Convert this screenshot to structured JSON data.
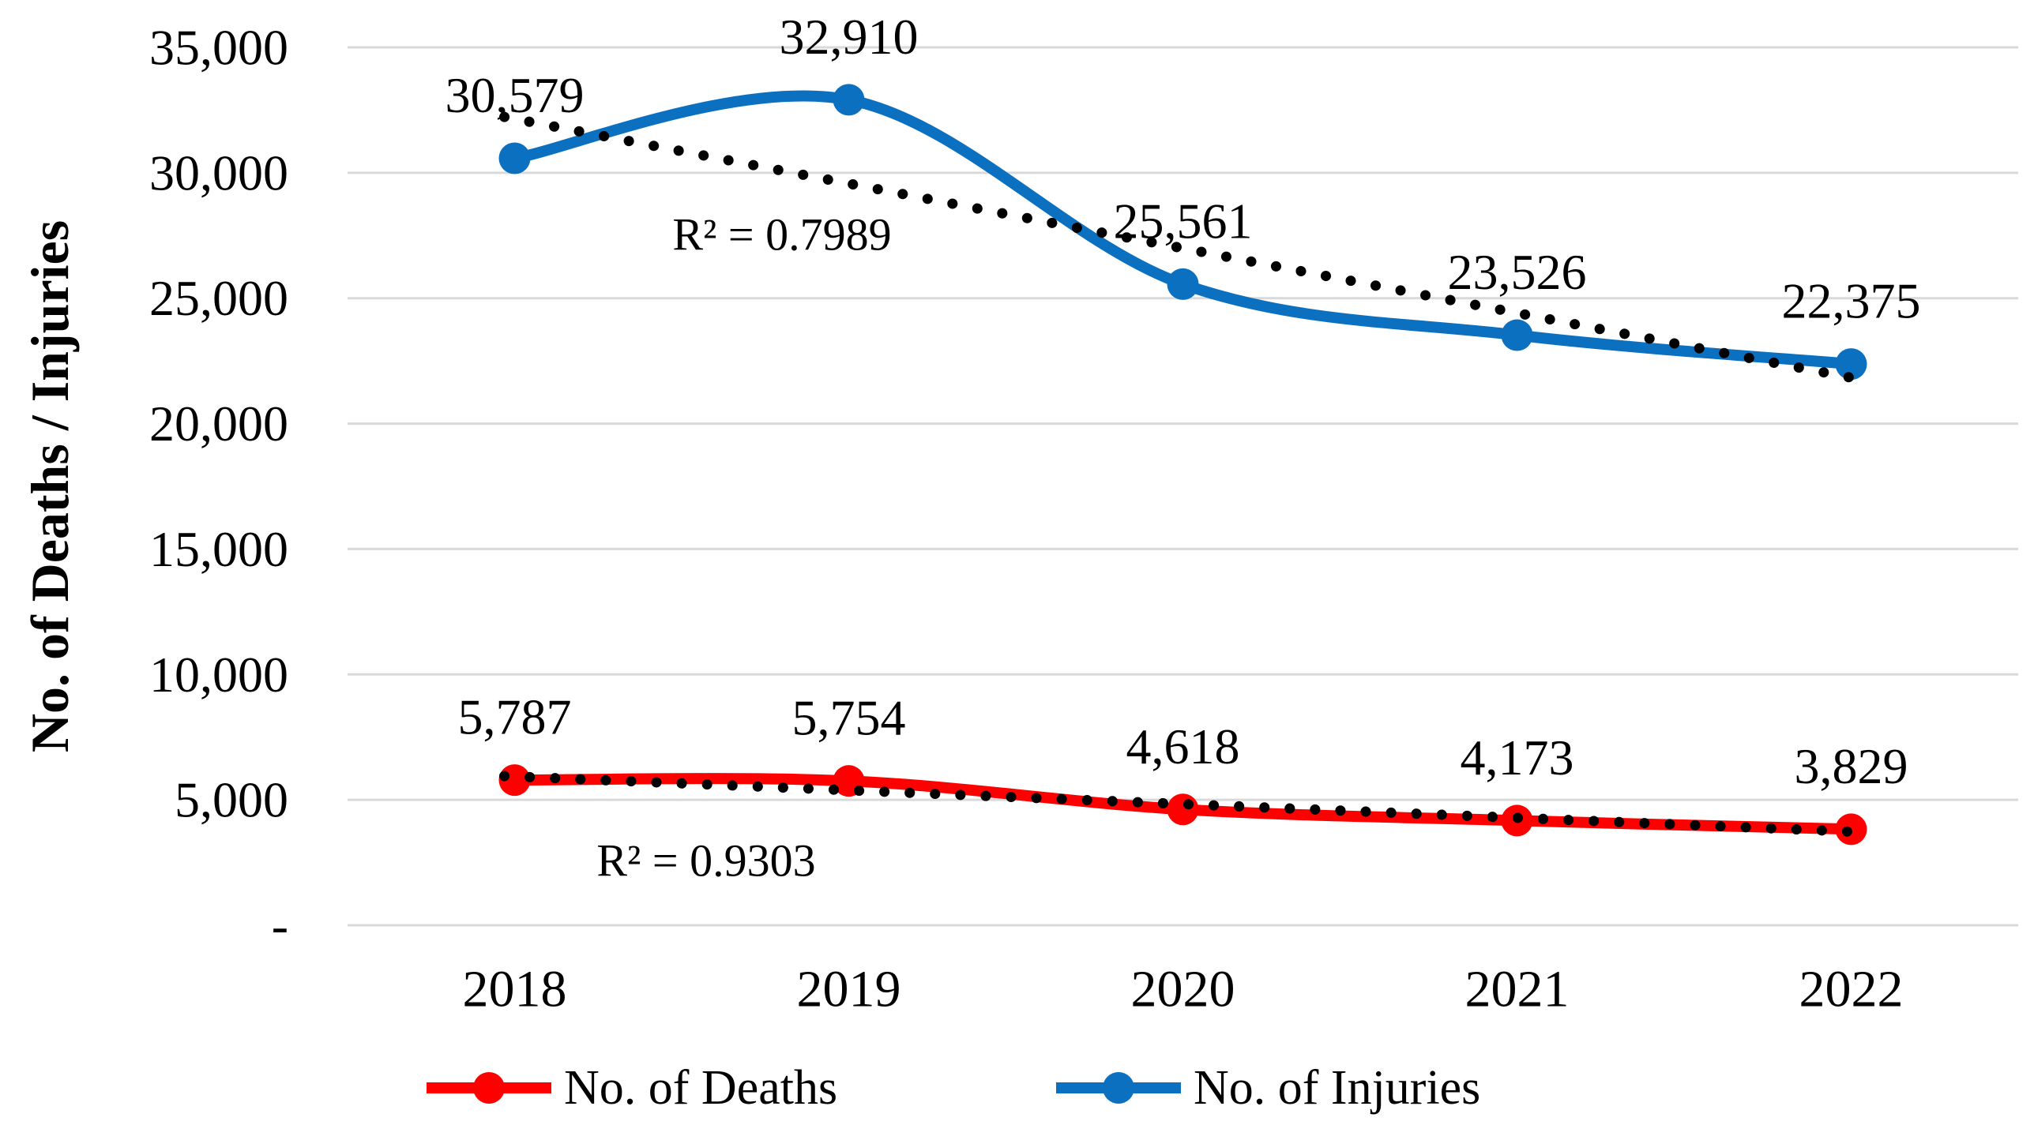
{
  "figure": {
    "background": "#FFFFFF",
    "y_axis_title": "No. of Deaths / Injuries",
    "grid_color": "#D9D9D9",
    "text_color": "#000000",
    "y_ticks": [
      {
        "value": 35000,
        "label": "35,000"
      },
      {
        "value": 30000,
        "label": "30,000"
      },
      {
        "value": 25000,
        "label": "25,000"
      },
      {
        "value": 20000,
        "label": "20,000"
      },
      {
        "value": 15000,
        "label": "15,000"
      },
      {
        "value": 10000,
        "label": "10,000"
      },
      {
        "value": 5000,
        "label": "5,000"
      },
      {
        "value": 0,
        "label": "-"
      }
    ]
  },
  "chart_data": {
    "type": "line",
    "title": "",
    "xlabel": "",
    "ylabel": "No. of Deaths / Injuries",
    "ylim": [
      0,
      35000
    ],
    "grid": true,
    "legend_position": "bottom",
    "categories": [
      "2018",
      "2019",
      "2020",
      "2021",
      "2022"
    ],
    "series": [
      {
        "name": "No. of Deaths",
        "color": "#FF0000",
        "values": [
          5787,
          5754,
          4618,
          4173,
          3829
        ],
        "labels": [
          "5,787",
          "5,754",
          "4,618",
          "4,173",
          "3,829"
        ],
        "smooth": true,
        "trendline": {
          "type": "linear",
          "color": "#000000",
          "r_squared_label": "R² = 0.9303"
        }
      },
      {
        "name": "No. of Injuries",
        "color": "#0C70C0",
        "values": [
          30579,
          32910,
          25561,
          23526,
          22375
        ],
        "labels": [
          "30,579",
          "32,910",
          "25,561",
          "23,526",
          "22,375"
        ],
        "smooth": true,
        "trendline": {
          "type": "linear",
          "color": "#000000",
          "r_squared_label": "R² = 0.7989"
        }
      }
    ]
  },
  "legend": {
    "items": [
      {
        "label": "No. of Deaths",
        "color": "#FF0000"
      },
      {
        "label": "No. of Injuries",
        "color": "#0C70C0"
      }
    ]
  }
}
